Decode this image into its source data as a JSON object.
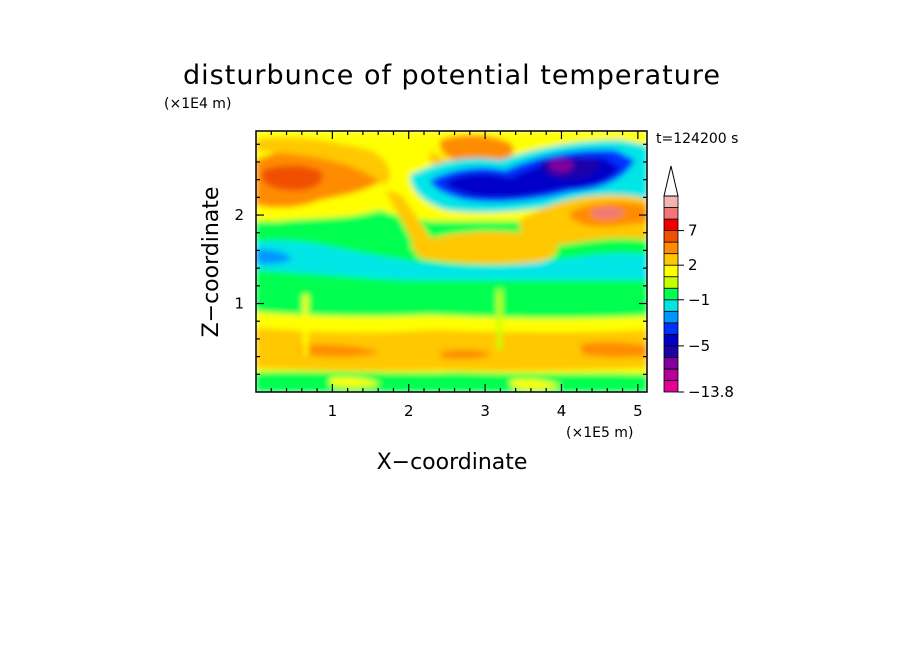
{
  "chart_data": {
    "type": "heatmap",
    "title": "disturbunce of potential temperature",
    "xlabel": "X−coordinate",
    "ylabel": "Z−coordinate",
    "x_unit": "(×1E5 m)",
    "y_unit": "(×1E4 m)",
    "time_label": "t=124200 s",
    "xlim": [
      0,
      5.12
    ],
    "ylim": [
      0,
      2.95
    ],
    "x_ticks": [
      1,
      2,
      3,
      4,
      5
    ],
    "y_ticks": [
      1,
      2
    ],
    "colorbar": {
      "levels": [
        -13.8,
        -11,
        -9,
        -7,
        -5,
        -4,
        -3,
        -2,
        -1,
        0,
        1,
        2,
        3,
        5,
        7,
        9,
        12
      ],
      "tick_labels": [
        "7",
        "2",
        "−1",
        "−5",
        "−13.8"
      ],
      "tick_values": [
        7,
        2,
        -1,
        -5,
        -13.8
      ],
      "colors": [
        "#e60096",
        "#b4009b",
        "#82009b",
        "#1e00aa",
        "#0000c8",
        "#0032ff",
        "#0096ff",
        "#00e6e6",
        "#00ff50",
        "#c8ff00",
        "#ffff00",
        "#ffc800",
        "#ff8c00",
        "#f05000",
        "#f00000",
        "#f07878",
        "#f5b4b4"
      ],
      "extend": "max"
    },
    "features": [
      {
        "region": "upper-left",
        "x": [
          0,
          1.6
        ],
        "z": [
          2.0,
          2.9
        ],
        "value": 5
      },
      {
        "region": "upper-middle",
        "x": [
          2.4,
          3.3
        ],
        "z": [
          2.5,
          2.9
        ],
        "value": 4
      },
      {
        "region": "upper-right-cold-core",
        "x": [
          2.5,
          4.8
        ],
        "z": [
          2.1,
          2.8
        ],
        "value": -5
      },
      {
        "region": "upper-right-warm",
        "x": [
          3.8,
          5.12
        ],
        "z": [
          1.6,
          2.2
        ],
        "value": 3
      },
      {
        "region": "middle-green-band",
        "x": [
          0,
          5.12
        ],
        "z": [
          0.8,
          1.3
        ],
        "value": -0.5
      },
      {
        "region": "cyan-band",
        "x": [
          0,
          5.12
        ],
        "z": [
          1.2,
          1.5
        ],
        "value": -1.5
      },
      {
        "region": "lower-warm-band",
        "x": [
          0,
          5.12
        ],
        "z": [
          0.15,
          0.8
        ],
        "value": 1.5
      }
    ]
  }
}
